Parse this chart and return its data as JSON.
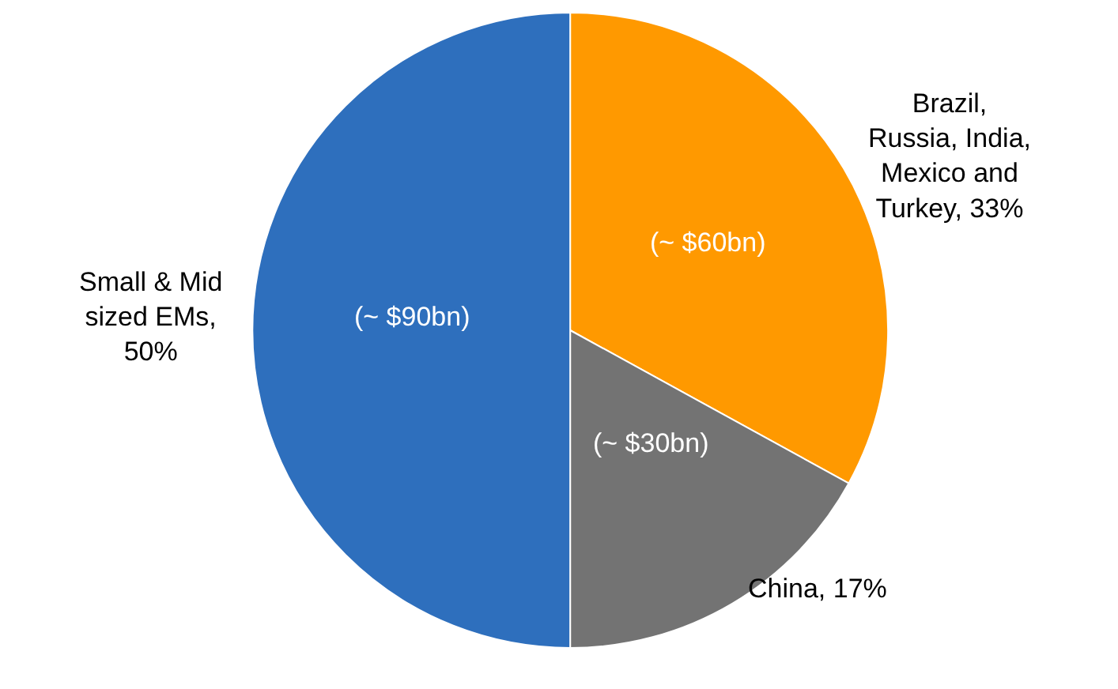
{
  "chart_data": {
    "type": "pie",
    "categories": [
      "Brazil, Russia, India, Mexico and Turkey, 33%",
      "China, 17%",
      "Small & Mid sized EMs, 50%"
    ],
    "values": [
      33,
      17,
      50
    ],
    "colors": [
      "#ff9900",
      "#737373",
      "#2e6fbd"
    ],
    "annotations": [
      "(~ $60bn)",
      "(~ $30bn)",
      "(~ $90bn)"
    ],
    "legend": false
  }
}
